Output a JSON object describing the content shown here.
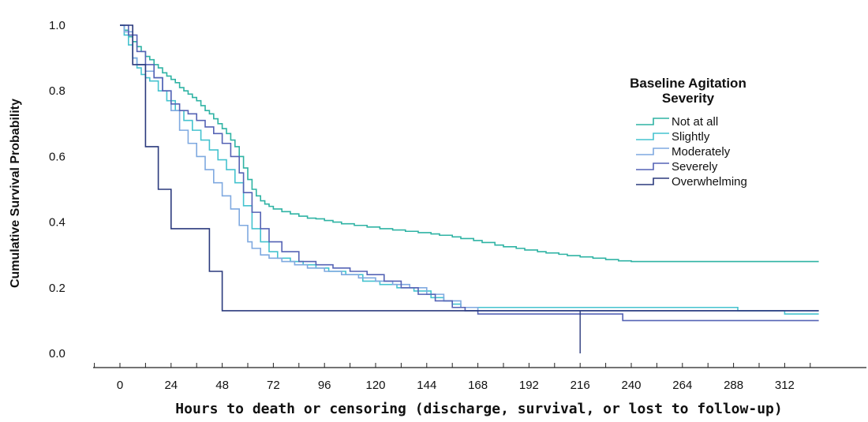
{
  "chart_data": {
    "type": "line",
    "subtype": "kaplan-meier-step",
    "xlabel": "Hours to death or censoring (discharge, survival, or lost to follow-up)",
    "ylabel": "Cumulative Survival Probability",
    "xlim": [
      -24,
      328
    ],
    "ylim": [
      0.0,
      1.0
    ],
    "xticks": [
      0,
      24,
      48,
      72,
      96,
      120,
      144,
      168,
      192,
      216,
      240,
      264,
      288,
      312
    ],
    "yticks": [
      0.0,
      0.2,
      0.4,
      0.6,
      0.8,
      1.0
    ],
    "ytick_labels": [
      "0.0",
      "0.2",
      "0.4",
      "0.6",
      "0.8",
      "1.0"
    ],
    "grid": false,
    "legend": {
      "title_lines": [
        "Baseline Agitation",
        "Severity"
      ],
      "position": "right",
      "entries": [
        "Not at all",
        "Slightly",
        "Moderately",
        "Severely",
        "Overwhelming"
      ]
    },
    "series": [
      {
        "name": "Not at all",
        "color": "#2fb3a4",
        "x": [
          0,
          2,
          4,
          6,
          8,
          10,
          12,
          14,
          16,
          18,
          20,
          22,
          24,
          26,
          28,
          30,
          32,
          34,
          36,
          38,
          40,
          42,
          44,
          46,
          48,
          50,
          52,
          54,
          56,
          58,
          60,
          62,
          64,
          66,
          68,
          70,
          72,
          76,
          80,
          84,
          88,
          92,
          96,
          100,
          104,
          110,
          116,
          122,
          128,
          134,
          140,
          146,
          150,
          156,
          160,
          166,
          170,
          176,
          180,
          186,
          190,
          196,
          200,
          206,
          210,
          216,
          222,
          228,
          234,
          240,
          328
        ],
        "y": [
          1.0,
          0.985,
          0.965,
          0.95,
          0.935,
          0.92,
          0.905,
          0.895,
          0.88,
          0.87,
          0.855,
          0.845,
          0.835,
          0.825,
          0.81,
          0.8,
          0.79,
          0.78,
          0.77,
          0.755,
          0.74,
          0.73,
          0.715,
          0.7,
          0.685,
          0.67,
          0.65,
          0.63,
          0.6,
          0.565,
          0.53,
          0.5,
          0.48,
          0.465,
          0.455,
          0.448,
          0.44,
          0.432,
          0.425,
          0.418,
          0.412,
          0.41,
          0.405,
          0.4,
          0.395,
          0.39,
          0.385,
          0.38,
          0.376,
          0.372,
          0.368,
          0.364,
          0.36,
          0.355,
          0.35,
          0.344,
          0.338,
          0.33,
          0.325,
          0.32,
          0.315,
          0.31,
          0.306,
          0.302,
          0.298,
          0.294,
          0.29,
          0.286,
          0.282,
          0.28,
          0.28
        ]
      },
      {
        "name": "Slightly",
        "color": "#45c3cf",
        "x": [
          0,
          2,
          4,
          6,
          8,
          10,
          12,
          14,
          18,
          22,
          26,
          30,
          34,
          38,
          42,
          46,
          50,
          54,
          58,
          62,
          66,
          70,
          74,
          80,
          86,
          92,
          98,
          106,
          114,
          122,
          130,
          138,
          146,
          152,
          156,
          160,
          168,
          200,
          232,
          250,
          270,
          290,
          312,
          328
        ],
        "y": [
          1.0,
          0.97,
          0.94,
          0.9,
          0.87,
          0.85,
          0.84,
          0.83,
          0.8,
          0.77,
          0.74,
          0.71,
          0.68,
          0.65,
          0.62,
          0.59,
          0.56,
          0.52,
          0.45,
          0.38,
          0.34,
          0.31,
          0.29,
          0.28,
          0.27,
          0.26,
          0.25,
          0.24,
          0.22,
          0.21,
          0.2,
          0.19,
          0.17,
          0.16,
          0.15,
          0.14,
          0.14,
          0.14,
          0.14,
          0.14,
          0.14,
          0.13,
          0.12,
          0.12
        ]
      },
      {
        "name": "Moderately",
        "color": "#7fa9e0",
        "x": [
          0,
          2,
          6,
          8,
          12,
          16,
          20,
          24,
          28,
          32,
          36,
          40,
          44,
          48,
          52,
          56,
          60,
          62,
          66,
          70,
          76,
          82,
          88,
          96,
          104,
          112,
          120,
          128,
          136,
          144,
          152,
          160,
          168,
          200,
          240,
          280,
          312,
          328
        ],
        "y": [
          1.0,
          0.98,
          0.9,
          0.88,
          0.86,
          0.84,
          0.8,
          0.74,
          0.68,
          0.64,
          0.6,
          0.56,
          0.52,
          0.48,
          0.44,
          0.39,
          0.34,
          0.32,
          0.3,
          0.29,
          0.28,
          0.27,
          0.26,
          0.25,
          0.24,
          0.23,
          0.22,
          0.21,
          0.2,
          0.18,
          0.16,
          0.14,
          0.13,
          0.13,
          0.13,
          0.13,
          0.13,
          0.13
        ]
      },
      {
        "name": "Severely",
        "color": "#5563b5",
        "x": [
          0,
          4,
          8,
          12,
          16,
          20,
          24,
          28,
          32,
          36,
          40,
          44,
          48,
          52,
          56,
          58,
          62,
          66,
          70,
          76,
          84,
          92,
          100,
          108,
          116,
          124,
          132,
          140,
          148,
          156,
          162,
          168,
          200,
          220,
          236,
          280,
          328
        ],
        "y": [
          1.0,
          0.97,
          0.92,
          0.88,
          0.84,
          0.8,
          0.76,
          0.74,
          0.73,
          0.71,
          0.69,
          0.67,
          0.64,
          0.6,
          0.55,
          0.49,
          0.43,
          0.38,
          0.34,
          0.31,
          0.28,
          0.27,
          0.26,
          0.25,
          0.24,
          0.22,
          0.2,
          0.18,
          0.16,
          0.14,
          0.13,
          0.12,
          0.12,
          0.12,
          0.1,
          0.1,
          0.1
        ]
      },
      {
        "name": "Overwhelming",
        "color": "#2b3a7d",
        "x": [
          0,
          6,
          12,
          18,
          24,
          30,
          36,
          42,
          48,
          54,
          60,
          100,
          140,
          180,
          216,
          328
        ],
        "y": [
          1.0,
          0.88,
          0.63,
          0.5,
          0.38,
          0.38,
          0.38,
          0.25,
          0.13,
          0.13,
          0.13,
          0.13,
          0.13,
          0.13,
          0.13,
          0.13
        ],
        "censor_drop": {
          "x": 216,
          "to": 0.0
        }
      }
    ]
  }
}
